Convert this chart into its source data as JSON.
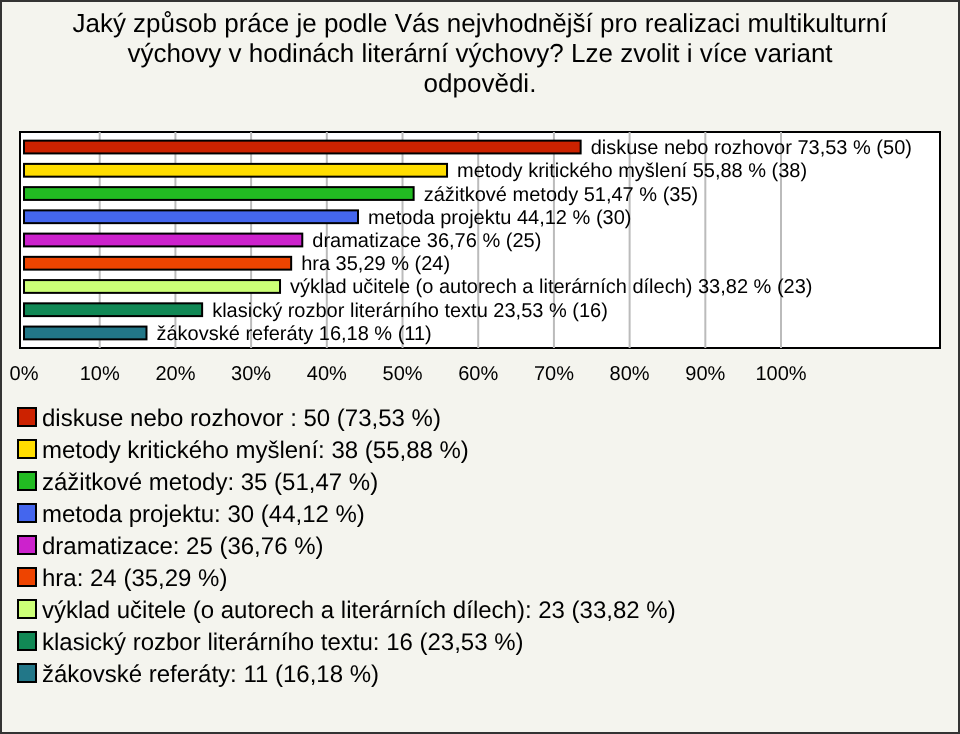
{
  "chart_data": {
    "type": "bar",
    "orientation": "horizontal",
    "title": "Jaký způsob práce je podle Vás nejvhodnější pro realizaci multikulturní výchovy v hodinách literární výchovy? Lze zvolit i více variant odpovědi.",
    "categories": [
      "diskuse nebo rozhovor",
      "metody kritického myšlení",
      "zážitkové metody",
      "metoda projektu",
      "dramatizace",
      "hra",
      "výklad učitele (o autorech a literárních dílech)",
      "klasický rozbor literárního textu",
      "žákovské referáty"
    ],
    "values": [
      73.53,
      55.88,
      51.47,
      44.12,
      36.76,
      35.29,
      33.82,
      23.53,
      16.18
    ],
    "value_labels": [
      "73,53 % (50)",
      "55,88 % (38)",
      "51,47 % (35)",
      "44,12 % (30)",
      "36,76 % (25)",
      "35,29 % (24)",
      "33,82 % (23)",
      "23,53 % (16)",
      "16,18 % (11)"
    ],
    "colors": [
      "#cc2200",
      "#ffdd00",
      "#22bb22",
      "#4466ee",
      "#cc22cc",
      "#ee4400",
      "#ccff77",
      "#118855",
      "#227788"
    ],
    "xlim": [
      0,
      121
    ],
    "xticks": [
      {
        "value": 0,
        "label": "0%"
      },
      {
        "value": 10,
        "label": "10%"
      },
      {
        "value": 20,
        "label": "20%"
      },
      {
        "value": 30,
        "label": "30%"
      },
      {
        "value": 40,
        "label": "40%"
      },
      {
        "value": 50,
        "label": "50%"
      },
      {
        "value": 60,
        "label": "60%"
      },
      {
        "value": 70,
        "label": "70%"
      },
      {
        "value": 80,
        "label": "80%"
      },
      {
        "value": 90,
        "label": "90%"
      },
      {
        "value": 100,
        "label": "100%"
      }
    ],
    "grid": "x",
    "tick_labels": "x",
    "annotations": [
      "diskuse nebo rozhovor : 50 (73,53 %)",
      "metody kritického myšlení: 38 (55,88 %)",
      "zážitkové metody: 35 (51,47 %)",
      "metoda projektu: 30 (44,12 %)",
      "dramatizace: 25 (36,76 %)",
      "hra: 24 (35,29 %)",
      "výklad učitele (o autorech a literárních dílech): 23 (33,82 %)",
      "klasický rozbor literárního textu: 16 (23,53 %)",
      "žákovské referáty: 11 (16,18 %)"
    ]
  }
}
